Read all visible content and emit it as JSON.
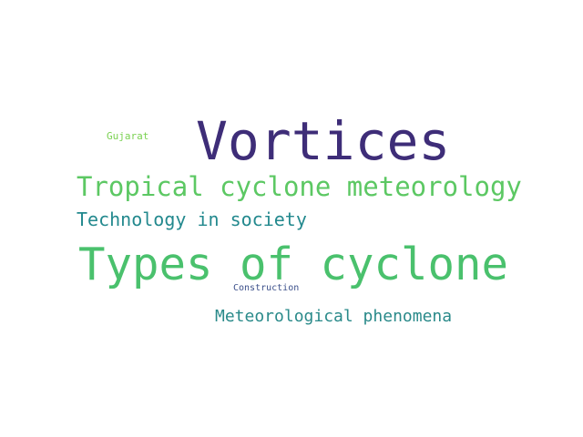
{
  "words": [
    {
      "text": "Vortices",
      "color": "#3e2d78"
    },
    {
      "text": "Tropical cyclone meteorology",
      "color": "#5cc863"
    },
    {
      "text": "Technology in society",
      "color": "#23898e"
    },
    {
      "text": "Types of cyclone",
      "color": "#4ac16d"
    },
    {
      "text": "Meteorological phenomena",
      "color": "#2a8a8a"
    },
    {
      "text": "Gujarat",
      "color": "#7ad151"
    },
    {
      "text": "Construction",
      "color": "#3b4f8a"
    }
  ]
}
